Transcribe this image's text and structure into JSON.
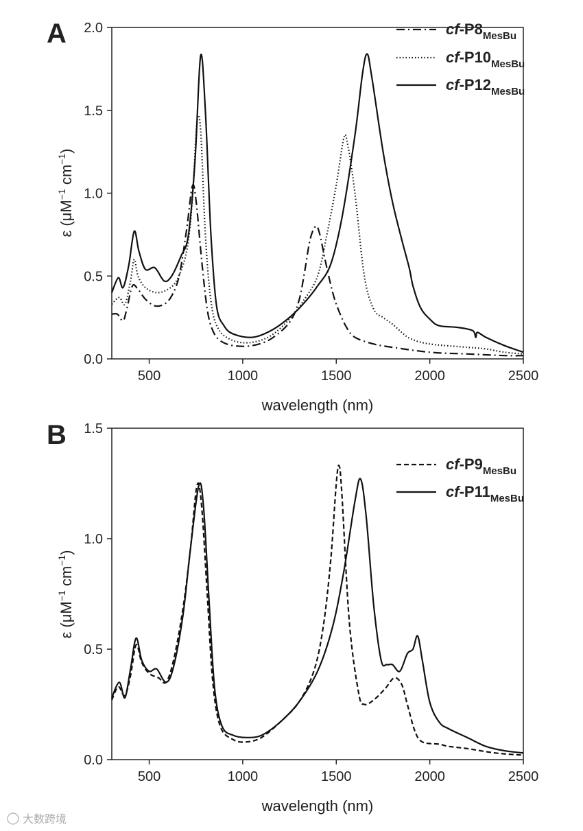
{
  "chart_data": [
    {
      "type": "line",
      "panel_label": "A",
      "xlabel": "wavelength (nm)",
      "ylabel": "ε (μM⁻¹ cm⁻¹)",
      "ylabel_parts": {
        "base": "ε (μM",
        "sup1": "−1",
        "mid": " cm",
        "sup2": "−1",
        "end": ")"
      },
      "xlim": [
        300,
        2500
      ],
      "ylim": [
        0,
        2.0
      ],
      "xticks": [
        500,
        1000,
        1500,
        2000,
        2500
      ],
      "xtick_labels": [
        "500",
        "1000",
        "1500",
        "2000",
        "2500"
      ],
      "yticks": [
        0,
        0.5,
        1.0,
        1.5,
        2.0
      ],
      "ytick_labels": [
        "0.0",
        "0.5",
        "1.0",
        "1.5",
        "2.0"
      ],
      "legend_position": "top-right",
      "series": [
        {
          "name": "cf-P8MesBu",
          "label_italic": "cf",
          "label_main": "-P8",
          "label_sub": "MesBu",
          "dash": "dashdot",
          "points": [
            [
              300,
              0.27
            ],
            [
              330,
              0.27
            ],
            [
              360,
              0.23
            ],
            [
              380,
              0.3
            ],
            [
              410,
              0.44
            ],
            [
              440,
              0.42
            ],
            [
              480,
              0.36
            ],
            [
              530,
              0.32
            ],
            [
              580,
              0.33
            ],
            [
              620,
              0.38
            ],
            [
              660,
              0.5
            ],
            [
              700,
              0.78
            ],
            [
              730,
              1.04
            ],
            [
              750,
              0.96
            ],
            [
              780,
              0.6
            ],
            [
              810,
              0.3
            ],
            [
              840,
              0.17
            ],
            [
              880,
              0.11
            ],
            [
              950,
              0.08
            ],
            [
              1050,
              0.08
            ],
            [
              1150,
              0.12
            ],
            [
              1250,
              0.22
            ],
            [
              1300,
              0.35
            ],
            [
              1330,
              0.52
            ],
            [
              1360,
              0.72
            ],
            [
              1390,
              0.8
            ],
            [
              1410,
              0.76
            ],
            [
              1440,
              0.6
            ],
            [
              1470,
              0.45
            ],
            [
              1500,
              0.33
            ],
            [
              1550,
              0.2
            ],
            [
              1600,
              0.13
            ],
            [
              1700,
              0.09
            ],
            [
              1800,
              0.07
            ],
            [
              2000,
              0.04
            ],
            [
              2200,
              0.03
            ],
            [
              2400,
              0.02
            ],
            [
              2500,
              0.02
            ]
          ]
        },
        {
          "name": "cf-P10MesBu",
          "label_italic": "cf",
          "label_main": "-P10",
          "label_sub": "MesBu",
          "dash": "dotted",
          "points": [
            [
              300,
              0.33
            ],
            [
              340,
              0.37
            ],
            [
              370,
              0.33
            ],
            [
              400,
              0.47
            ],
            [
              420,
              0.6
            ],
            [
              440,
              0.5
            ],
            [
              480,
              0.43
            ],
            [
              540,
              0.4
            ],
            [
              600,
              0.42
            ],
            [
              650,
              0.48
            ],
            [
              700,
              0.65
            ],
            [
              730,
              0.95
            ],
            [
              755,
              1.42
            ],
            [
              775,
              1.38
            ],
            [
              800,
              0.75
            ],
            [
              830,
              0.35
            ],
            [
              870,
              0.18
            ],
            [
              950,
              0.11
            ],
            [
              1050,
              0.1
            ],
            [
              1150,
              0.14
            ],
            [
              1250,
              0.24
            ],
            [
              1330,
              0.36
            ],
            [
              1400,
              0.5
            ],
            [
              1450,
              0.75
            ],
            [
              1500,
              1.05
            ],
            [
              1540,
              1.33
            ],
            [
              1560,
              1.3
            ],
            [
              1600,
              1.0
            ],
            [
              1650,
              0.5
            ],
            [
              1700,
              0.3
            ],
            [
              1750,
              0.25
            ],
            [
              1800,
              0.21
            ],
            [
              1850,
              0.16
            ],
            [
              1900,
              0.12
            ],
            [
              2000,
              0.09
            ],
            [
              2200,
              0.07
            ],
            [
              2300,
              0.06
            ],
            [
              2400,
              0.04
            ],
            [
              2500,
              0.03
            ]
          ]
        },
        {
          "name": "cf-P12MesBu",
          "label_italic": "cf",
          "label_main": "-P12",
          "label_sub": "MesBu",
          "dash": "solid",
          "points": [
            [
              300,
              0.4
            ],
            [
              335,
              0.49
            ],
            [
              360,
              0.43
            ],
            [
              390,
              0.56
            ],
            [
              420,
              0.77
            ],
            [
              445,
              0.65
            ],
            [
              480,
              0.54
            ],
            [
              530,
              0.55
            ],
            [
              580,
              0.47
            ],
            [
              620,
              0.5
            ],
            [
              670,
              0.62
            ],
            [
              710,
              0.75
            ],
            [
              745,
              1.2
            ],
            [
              775,
              1.83
            ],
            [
              800,
              1.5
            ],
            [
              830,
              0.75
            ],
            [
              860,
              0.32
            ],
            [
              900,
              0.2
            ],
            [
              950,
              0.15
            ],
            [
              1050,
              0.13
            ],
            [
              1150,
              0.17
            ],
            [
              1250,
              0.25
            ],
            [
              1330,
              0.34
            ],
            [
              1400,
              0.44
            ],
            [
              1470,
              0.57
            ],
            [
              1530,
              0.85
            ],
            [
              1600,
              1.35
            ],
            [
              1640,
              1.72
            ],
            [
              1665,
              1.84
            ],
            [
              1690,
              1.7
            ],
            [
              1750,
              1.25
            ],
            [
              1800,
              0.95
            ],
            [
              1850,
              0.72
            ],
            [
              1890,
              0.55
            ],
            [
              1910,
              0.44
            ],
            [
              1950,
              0.31
            ],
            [
              2000,
              0.24
            ],
            [
              2050,
              0.2
            ],
            [
              2150,
              0.19
            ],
            [
              2230,
              0.17
            ],
            [
              2245,
              0.13
            ],
            [
              2255,
              0.16
            ],
            [
              2300,
              0.13
            ],
            [
              2400,
              0.08
            ],
            [
              2500,
              0.04
            ]
          ]
        }
      ]
    },
    {
      "type": "line",
      "panel_label": "B",
      "xlabel": "wavelength (nm)",
      "ylabel": "ε (μM⁻¹ cm⁻¹)",
      "ylabel_parts": {
        "base": "ε (μM",
        "sup1": "−1",
        "mid": " cm",
        "sup2": "−1",
        "end": ")"
      },
      "xlim": [
        300,
        2500
      ],
      "ylim": [
        0,
        1.5
      ],
      "xticks": [
        500,
        1000,
        1500,
        2000,
        2500
      ],
      "xtick_labels": [
        "500",
        "1000",
        "1500",
        "2000",
        "2500"
      ],
      "yticks": [
        0,
        0.5,
        1.0,
        1.5
      ],
      "ytick_labels": [
        "0.0",
        "0.5",
        "1.0",
        "1.5"
      ],
      "legend_position": "top-right",
      "series": [
        {
          "name": "cf-P9MesBu",
          "label_italic": "cf",
          "label_main": "-P9",
          "label_sub": "MesBu",
          "dash": "dashed",
          "points": [
            [
              300,
              0.27
            ],
            [
              335,
              0.33
            ],
            [
              370,
              0.29
            ],
            [
              400,
              0.38
            ],
            [
              430,
              0.52
            ],
            [
              460,
              0.44
            ],
            [
              500,
              0.39
            ],
            [
              550,
              0.37
            ],
            [
              590,
              0.35
            ],
            [
              630,
              0.45
            ],
            [
              680,
              0.68
            ],
            [
              720,
              0.95
            ],
            [
              755,
              1.24
            ],
            [
              780,
              1.15
            ],
            [
              810,
              0.75
            ],
            [
              840,
              0.35
            ],
            [
              880,
              0.15
            ],
            [
              950,
              0.09
            ],
            [
              1020,
              0.08
            ],
            [
              1100,
              0.1
            ],
            [
              1200,
              0.17
            ],
            [
              1300,
              0.26
            ],
            [
              1380,
              0.4
            ],
            [
              1430,
              0.6
            ],
            [
              1470,
              0.9
            ],
            [
              1500,
              1.25
            ],
            [
              1515,
              1.33
            ],
            [
              1530,
              1.2
            ],
            [
              1570,
              0.62
            ],
            [
              1620,
              0.3
            ],
            [
              1650,
              0.25
            ],
            [
              1700,
              0.27
            ],
            [
              1760,
              0.32
            ],
            [
              1810,
              0.37
            ],
            [
              1850,
              0.34
            ],
            [
              1880,
              0.25
            ],
            [
              1920,
              0.13
            ],
            [
              1960,
              0.08
            ],
            [
              2050,
              0.07
            ],
            [
              2100,
              0.06
            ],
            [
              2200,
              0.05
            ],
            [
              2350,
              0.03
            ],
            [
              2500,
              0.02
            ]
          ]
        },
        {
          "name": "cf-P11MesBu",
          "label_italic": "cf",
          "label_main": "-P11",
          "label_sub": "MesBu",
          "dash": "solid",
          "points": [
            [
              300,
              0.28
            ],
            [
              340,
              0.35
            ],
            [
              370,
              0.28
            ],
            [
              400,
              0.41
            ],
            [
              430,
              0.55
            ],
            [
              460,
              0.45
            ],
            [
              500,
              0.4
            ],
            [
              540,
              0.41
            ],
            [
              590,
              0.35
            ],
            [
              630,
              0.42
            ],
            [
              680,
              0.65
            ],
            [
              720,
              0.95
            ],
            [
              765,
              1.24
            ],
            [
              790,
              1.15
            ],
            [
              820,
              0.72
            ],
            [
              850,
              0.32
            ],
            [
              890,
              0.15
            ],
            [
              950,
              0.11
            ],
            [
              1020,
              0.1
            ],
            [
              1100,
              0.11
            ],
            [
              1200,
              0.17
            ],
            [
              1300,
              0.26
            ],
            [
              1400,
              0.4
            ],
            [
              1480,
              0.6
            ],
            [
              1540,
              0.85
            ],
            [
              1600,
              1.17
            ],
            [
              1630,
              1.27
            ],
            [
              1660,
              1.1
            ],
            [
              1700,
              0.7
            ],
            [
              1740,
              0.45
            ],
            [
              1770,
              0.43
            ],
            [
              1800,
              0.43
            ],
            [
              1840,
              0.4
            ],
            [
              1880,
              0.48
            ],
            [
              1910,
              0.5
            ],
            [
              1935,
              0.56
            ],
            [
              1960,
              0.45
            ],
            [
              2000,
              0.26
            ],
            [
              2050,
              0.17
            ],
            [
              2100,
              0.14
            ],
            [
              2200,
              0.1
            ],
            [
              2300,
              0.06
            ],
            [
              2400,
              0.04
            ],
            [
              2500,
              0.03
            ]
          ]
        }
      ]
    }
  ],
  "watermark": "大数跨境"
}
